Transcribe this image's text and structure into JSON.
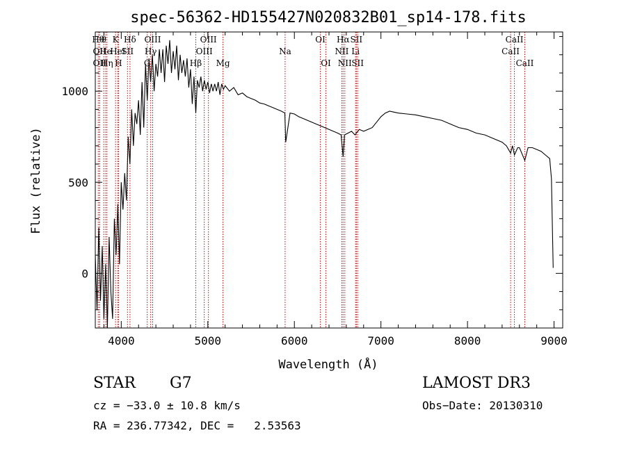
{
  "chart_data": {
    "type": "line",
    "title": "spec-56362-HD155427N020832B01_sp14-178.fits",
    "xlabel": "Wavelength (Å)",
    "ylabel": "Flux (relative)",
    "xlim": [
      3700,
      9100
    ],
    "ylim": [
      -300,
      1325
    ],
    "xticks": [
      4000,
      5000,
      6000,
      7000,
      8000,
      9000
    ],
    "xtick_labels": [
      "4000",
      "5000",
      "6000",
      "7000",
      "8000",
      "9000"
    ],
    "yticks": [
      0,
      500,
      1000
    ],
    "ytick_labels": [
      "0",
      "500",
      "1000"
    ],
    "series": [
      {
        "x": [
          3700,
          3720,
          3740,
          3760,
          3780,
          3800,
          3820,
          3840,
          3860,
          3880,
          3900,
          3920,
          3940,
          3960,
          3980,
          4000,
          4020,
          4040,
          4060,
          4080,
          4100,
          4120,
          4140,
          4160,
          4180,
          4200,
          4220,
          4240,
          4260,
          4280,
          4300,
          4320,
          4340,
          4360,
          4380,
          4400,
          4420,
          4440,
          4460,
          4480,
          4500,
          4520,
          4540,
          4560,
          4580,
          4600,
          4620,
          4640,
          4660,
          4680,
          4700,
          4720,
          4740,
          4760,
          4780,
          4800,
          4820,
          4840,
          4861,
          4880,
          4900,
          4920,
          4940,
          4960,
          4980,
          5000,
          5020,
          5040,
          5060,
          5080,
          5100,
          5120,
          5140,
          5160,
          5180,
          5200,
          5250,
          5300,
          5350,
          5400,
          5450,
          5500,
          5550,
          5600,
          5650,
          5700,
          5750,
          5800,
          5850,
          5890,
          5900,
          5950,
          6000,
          6050,
          6100,
          6150,
          6200,
          6250,
          6300,
          6350,
          6400,
          6450,
          6500,
          6540,
          6563,
          6580,
          6620,
          6660,
          6700,
          6750,
          6800,
          6850,
          6900,
          6950,
          7000,
          7050,
          7100,
          7150,
          7200,
          7300,
          7400,
          7500,
          7600,
          7700,
          7800,
          7900,
          8000,
          8100,
          8200,
          8300,
          8400,
          8450,
          8498,
          8520,
          8542,
          8580,
          8600,
          8662,
          8700,
          8750,
          8800,
          8850,
          8900,
          8950,
          8970,
          8990
        ],
        "y": [
          100,
          -200,
          250,
          -150,
          150,
          -250,
          50,
          -300,
          200,
          -100,
          -250,
          300,
          100,
          380,
          50,
          500,
          350,
          550,
          400,
          750,
          600,
          900,
          700,
          880,
          820,
          950,
          760,
          1050,
          800,
          1150,
          950,
          1180,
          1050,
          1200,
          1000,
          1150,
          1080,
          1230,
          1100,
          1230,
          1050,
          1250,
          1150,
          1280,
          1100,
          1220,
          1120,
          1250,
          1060,
          1200,
          1100,
          1170,
          1080,
          1180,
          1020,
          1120,
          930,
          1080,
          880,
          1060,
          1020,
          1080,
          1000,
          1060,
          1010,
          1050,
          990,
          1040,
          1000,
          1040,
          1000,
          1050,
          980,
          1040,
          1010,
          1030,
          1000,
          1020,
          980,
          990,
          970,
          960,
          950,
          935,
          930,
          920,
          910,
          900,
          890,
          880,
          720,
          880,
          875,
          860,
          850,
          840,
          830,
          820,
          810,
          800,
          790,
          780,
          770,
          760,
          640,
          760,
          770,
          780,
          760,
          790,
          780,
          790,
          800,
          830,
          860,
          880,
          890,
          885,
          880,
          875,
          870,
          860,
          850,
          840,
          820,
          800,
          790,
          770,
          760,
          740,
          720,
          700,
          660,
          700,
          650,
          690,
          690,
          620,
          690,
          690,
          680,
          670,
          650,
          630,
          520,
          30
        ]
      }
    ],
    "line_labels": [
      {
        "x": 3734,
        "label": "Hθ",
        "row": 1
      },
      {
        "x": 3750,
        "label": "OII",
        "row": 2
      },
      {
        "x": 3750,
        "label": "OII",
        "row": 3
      },
      {
        "x": 3798,
        "label": "θ",
        "row": 1
      },
      {
        "x": 3820,
        "label": "He",
        "row": 2
      },
      {
        "x": 3835,
        "label": "Hη",
        "row": 3
      },
      {
        "x": 3934,
        "label": "K",
        "row": 1
      },
      {
        "x": 3960,
        "label": "HeI",
        "row": 2
      },
      {
        "x": 3968,
        "label": "H",
        "row": 3
      },
      {
        "x": 4072,
        "label": "SII",
        "row": 2
      },
      {
        "x": 4101,
        "label": "Hδ",
        "row": 1
      },
      {
        "x": 4300,
        "label": "G",
        "row": 3
      },
      {
        "x": 4340,
        "label": "Hγ",
        "row": 2
      },
      {
        "x": 4363,
        "label": "OIII",
        "row": 1
      },
      {
        "x": 4861,
        "label": "Hβ",
        "row": 3
      },
      {
        "x": 4959,
        "label": "OIII",
        "row": 2
      },
      {
        "x": 5007,
        "label": "OIII",
        "row": 1
      },
      {
        "x": 5175,
        "label": "Mg",
        "row": 3
      },
      {
        "x": 5893,
        "label": "Na",
        "row": 2
      },
      {
        "x": 6300,
        "label": "OI",
        "row": 1
      },
      {
        "x": 6364,
        "label": "OI",
        "row": 3
      },
      {
        "x": 6548,
        "label": "NII",
        "row": 2
      },
      {
        "x": 6563,
        "label": "Hα",
        "row": 1
      },
      {
        "x": 6583,
        "label": "NII",
        "row": 3
      },
      {
        "x": 6716,
        "label": "SII",
        "row": 1
      },
      {
        "x": 6707,
        "label": "Li",
        "row": 2
      },
      {
        "x": 6731,
        "label": "SII",
        "row": 3
      },
      {
        "x": 8498,
        "label": "CaII",
        "row": 2
      },
      {
        "x": 8542,
        "label": "CaII",
        "row": 1
      },
      {
        "x": 8662,
        "label": "CaII",
        "row": 3
      }
    ],
    "grid": false,
    "legend": "none",
    "line_color": "#000000",
    "marker_color": "#cc0000"
  },
  "info": {
    "object_type": "STAR",
    "subclass": "G7",
    "survey": "LAMOST DR3",
    "cz": "cz = −33.0 ± 10.8 km/s",
    "obs_date": "Obs−Date: 20130310",
    "coords": "RA = 236.77342, DEC =   2.53563"
  }
}
